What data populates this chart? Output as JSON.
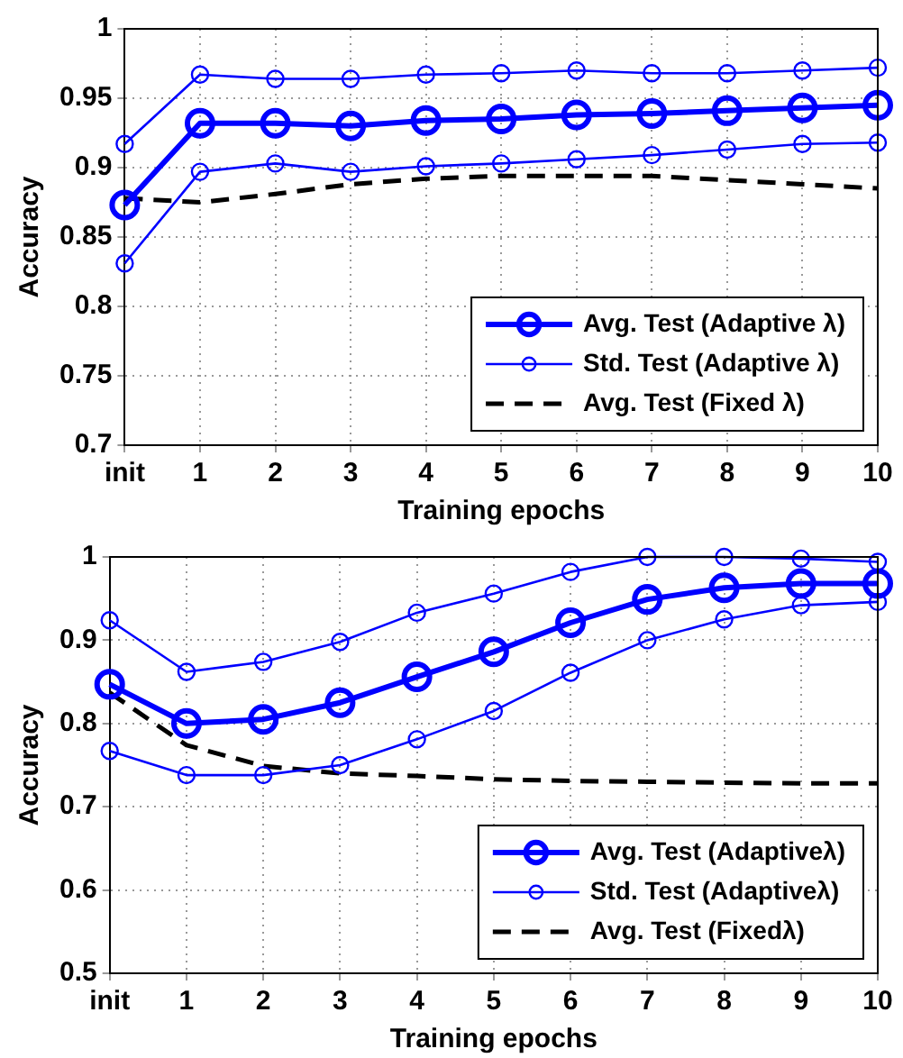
{
  "chart_data": [
    {
      "type": "line",
      "xlabel": "Training epochs",
      "ylabel": "Accuracy",
      "categories": [
        "init",
        "1",
        "2",
        "3",
        "4",
        "5",
        "6",
        "7",
        "8",
        "9",
        "10"
      ],
      "series": [
        {
          "name": "Avg. Test (Adaptive λ)",
          "color": "#0000ff",
          "marker": "circle",
          "line_style": "solid",
          "values": [
            0.873,
            0.932,
            0.932,
            0.93,
            0.934,
            0.935,
            0.938,
            0.939,
            0.941,
            0.943,
            0.945
          ]
        },
        {
          "name": "Std. Test (Adaptive λ)",
          "color": "#0000ff",
          "marker": "circle",
          "line_style": "solid",
          "values": [
            0.917,
            0.967,
            0.964,
            0.964,
            0.967,
            0.968,
            0.97,
            0.968,
            0.968,
            0.97,
            0.972
          ]
        },
        {
          "color": "#0000ff",
          "marker": "circle",
          "line_style": "solid",
          "values": [
            0.831,
            0.897,
            0.903,
            0.897,
            0.901,
            0.903,
            0.906,
            0.909,
            0.913,
            0.917,
            0.918
          ]
        },
        {
          "name": "Avg. Test (Fixed λ)",
          "color": "#000000",
          "marker": "none",
          "line_style": "dashed",
          "values": [
            0.878,
            0.875,
            0.881,
            0.888,
            0.892,
            0.894,
            0.894,
            0.894,
            0.891,
            0.888,
            0.885
          ]
        }
      ],
      "ylim": [
        0.7,
        1
      ],
      "yticks": [
        0.7,
        0.75,
        0.8,
        0.85,
        0.9,
        0.95,
        1
      ],
      "grid": true,
      "legend": "bottom right"
    },
    {
      "type": "line",
      "xlabel": "Training epochs",
      "ylabel": "Accuracy",
      "categories": [
        "init",
        "1",
        "2",
        "3",
        "4",
        "5",
        "6",
        "7",
        "8",
        "9",
        "10"
      ],
      "series": [
        {
          "name": "Avg. Test (Adaptiveλ)",
          "color": "#0000ff",
          "marker": "circle",
          "line_style": "solid",
          "values": [
            0.847,
            0.8,
            0.805,
            0.825,
            0.856,
            0.886,
            0.921,
            0.949,
            0.963,
            0.968,
            0.968
          ]
        },
        {
          "name": "Std. Test (Adaptiveλ)",
          "color": "#0000ff",
          "marker": "circle",
          "line_style": "solid",
          "values": [
            0.924,
            0.862,
            0.874,
            0.898,
            0.933,
            0.956,
            0.982,
            1.0,
            1.0,
            0.998,
            0.994
          ]
        },
        {
          "color": "#0000ff",
          "marker": "circle",
          "line_style": "solid",
          "values": [
            0.767,
            0.738,
            0.738,
            0.75,
            0.781,
            0.815,
            0.861,
            0.9,
            0.925,
            0.942,
            0.946
          ]
        },
        {
          "name": "Avg. Test (Fixedλ)",
          "color": "#000000",
          "marker": "none",
          "line_style": "dashed",
          "values": [
            0.837,
            0.774,
            0.749,
            0.74,
            0.737,
            0.733,
            0.731,
            0.73,
            0.729,
            0.728,
            0.728
          ]
        }
      ],
      "ylim": [
        0.5,
        1
      ],
      "yticks": [
        0.5,
        0.6,
        0.7,
        0.8,
        0.9,
        1
      ],
      "grid": true,
      "legend": "bottom right"
    }
  ]
}
